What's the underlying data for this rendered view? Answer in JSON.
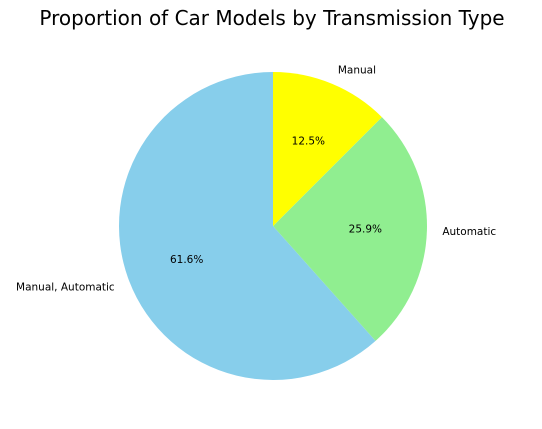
{
  "chart_data": {
    "type": "pie",
    "title": "Proportion of Car Models by Transmission Type",
    "labels": [
      "Manual, Automatic",
      "Automatic",
      "Manual"
    ],
    "values": [
      61.6,
      25.9,
      12.5
    ],
    "percent_labels": [
      "61.6%",
      "25.9%",
      "12.5%"
    ],
    "colors": [
      "#87CEEB",
      "#90EE90",
      "#FFFF00"
    ],
    "start_angle_deg": 90,
    "direction": "counterclockwise"
  }
}
